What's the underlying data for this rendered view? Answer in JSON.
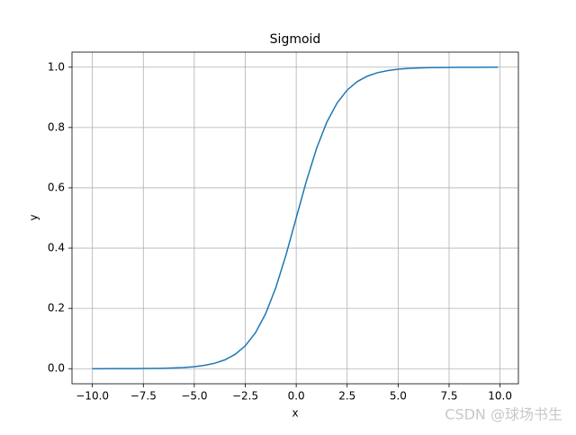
{
  "chart_data": {
    "type": "line",
    "title": "Sigmoid",
    "x_label": "x",
    "y_label": "y",
    "color": "#1f77b4",
    "grid": true,
    "x": [
      -10,
      -9.5,
      -9,
      -8.5,
      -8,
      -7.5,
      -7,
      -6.5,
      -6,
      -5.5,
      -5,
      -4.5,
      -4,
      -3.5,
      -3,
      -2.5,
      -2,
      -1.5,
      -1,
      -0.5,
      0,
      0.5,
      1,
      1.5,
      2,
      2.5,
      3,
      3.5,
      4,
      4.5,
      5,
      5.5,
      6,
      6.5,
      7,
      7.5,
      8,
      8.5,
      9,
      9.5,
      9.9
    ],
    "values": [
      4.54e-05,
      7.49e-05,
      0.0001234,
      0.0002034,
      0.0003354,
      0.000553,
      0.000911,
      0.001501,
      0.002473,
      0.00407,
      0.006693,
      0.010987,
      0.017986,
      0.029312,
      0.047426,
      0.075858,
      0.119203,
      0.182426,
      0.268941,
      0.377541,
      0.5,
      0.622459,
      0.731059,
      0.817574,
      0.880797,
      0.924142,
      0.952574,
      0.970688,
      0.982014,
      0.989013,
      0.993307,
      0.99593,
      0.997527,
      0.998499,
      0.999089,
      0.999447,
      0.999665,
      0.999797,
      0.999877,
      0.999925,
      0.99995
    ],
    "xlim": [
      -11,
      10.9
    ],
    "ylim": [
      -0.05,
      1.05
    ],
    "xticks": [
      {
        "value": -10,
        "label": "−10.0"
      },
      {
        "value": -7.5,
        "label": "−7.5"
      },
      {
        "value": -5,
        "label": "−5.0"
      },
      {
        "value": -2.5,
        "label": "−2.5"
      },
      {
        "value": 0,
        "label": "0.0"
      },
      {
        "value": 2.5,
        "label": "2.5"
      },
      {
        "value": 5,
        "label": "5.0"
      },
      {
        "value": 7.5,
        "label": "7.5"
      },
      {
        "value": 10,
        "label": "10.0"
      }
    ],
    "yticks": [
      {
        "value": 0,
        "label": "0.0"
      },
      {
        "value": 0.2,
        "label": "0.2"
      },
      {
        "value": 0.4,
        "label": "0.4"
      },
      {
        "value": 0.6,
        "label": "0.6"
      },
      {
        "value": 0.8,
        "label": "0.8"
      },
      {
        "value": 1,
        "label": "1.0"
      }
    ],
    "watermark": "CSDN @球场书生"
  }
}
